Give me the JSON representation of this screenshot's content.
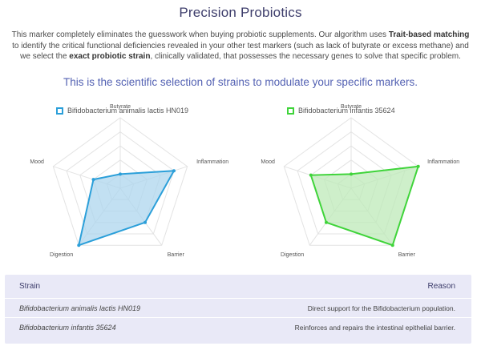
{
  "page": {
    "title": "Precision Probiotics",
    "intro_part1": "This marker completely eliminates the guesswork when buying probiotic supplements. Our algorithm uses ",
    "intro_bold1": "Trait-based matching",
    "intro_part2": " to identify the critical functional deficiencies revealed in your other test markers (such as lack of butyrate or excess methane) and we select the ",
    "intro_bold2": "exact probiotic strain",
    "intro_part3": ", clinically validated, that possesses the necessary genes to solve that specific problem.",
    "subtitle": "This is the scientific selection of strains to modulate your specific markers."
  },
  "chart_data": [
    {
      "type": "radar",
      "series": [
        {
          "name": "Bifidobacterium animalis lactis HN019",
          "values": [
            1,
            4,
            3,
            5,
            2
          ]
        }
      ],
      "axes": [
        "Butyrate",
        "Inflammation",
        "Barrier",
        "Digestion",
        "Mood"
      ],
      "range": [
        0,
        5
      ],
      "levels": 5,
      "color": "#2b9fd9",
      "fill": "#aed6ee"
    },
    {
      "type": "radar",
      "series": [
        {
          "name": "Bifidobacterium infantis 35624",
          "values": [
            1,
            5,
            5,
            3,
            3
          ]
        }
      ],
      "axes": [
        "Butyrate",
        "Inflammation",
        "Barrier",
        "Digestion",
        "Mood"
      ],
      "range": [
        0,
        5
      ],
      "levels": 5,
      "color": "#3fd43a",
      "fill": "#bdeab8"
    }
  ],
  "table": {
    "headers": {
      "strain": "Strain",
      "reason": "Reason"
    },
    "rows": [
      {
        "strain": "Bifidobacterium animalis lactis HN019",
        "reason": "Direct support for the Bifidobacterium population."
      },
      {
        "strain": "Bifidobacterium infantis 35624",
        "reason": "Reinforces and repairs the intestinal epithelial barrier."
      }
    ]
  }
}
